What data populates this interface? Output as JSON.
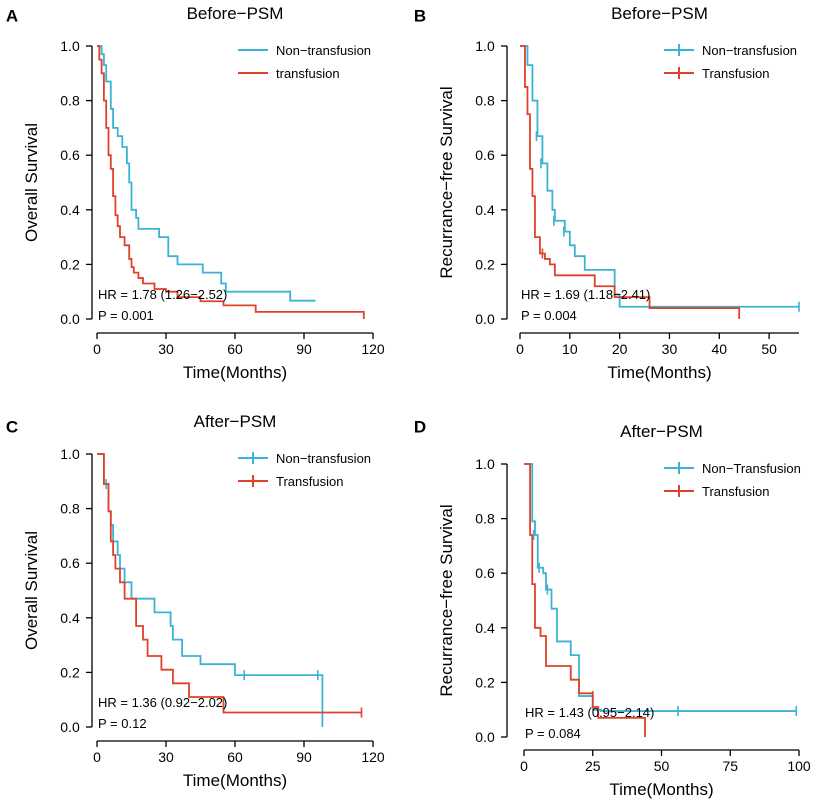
{
  "colors": {
    "non_transfusion": "#3ab3d4",
    "transfusion": "#e0412a",
    "axis": "#000000"
  },
  "chart_data": [
    {
      "type": "line",
      "panel": "A",
      "title": "Before−PSM",
      "xlabel": "Time(Months)",
      "ylabel": "Overall Survival",
      "xlim": [
        0,
        120
      ],
      "ylim": [
        0,
        1
      ],
      "xticks": [
        "0",
        "30",
        "60",
        "90",
        "120"
      ],
      "yticks": [
        "0.0",
        "0.2",
        "0.4",
        "0.6",
        "0.8",
        "1.0"
      ],
      "legend_position": "top-right",
      "annotation": {
        "hr": "HR = 1.78 (1.26−2.52)",
        "p": "P = 0.001"
      },
      "series": [
        {
          "name": "Non−transfusion",
          "color_key": "non_transfusion",
          "censor_marks": false,
          "steps": [
            [
              0,
              1.0
            ],
            [
              2,
              0.97
            ],
            [
              3,
              0.93
            ],
            [
              4,
              0.87
            ],
            [
              6,
              0.77
            ],
            [
              7,
              0.7
            ],
            [
              9,
              0.67
            ],
            [
              11,
              0.63
            ],
            [
              13,
              0.57
            ],
            [
              14,
              0.5
            ],
            [
              15,
              0.4
            ],
            [
              17,
              0.37
            ],
            [
              18,
              0.33
            ],
            [
              27,
              0.3
            ],
            [
              31,
              0.23
            ],
            [
              35,
              0.2
            ],
            [
              46,
              0.17
            ],
            [
              54,
              0.13
            ],
            [
              56,
              0.1
            ],
            [
              84,
              0.067
            ],
            [
              95,
              0.067
            ]
          ],
          "censors": []
        },
        {
          "name": "transfusion",
          "color_key": "transfusion",
          "censor_marks": false,
          "steps": [
            [
              0,
              1.0
            ],
            [
              1,
              0.95
            ],
            [
              2,
              0.9
            ],
            [
              3,
              0.8
            ],
            [
              4,
              0.7
            ],
            [
              5,
              0.6
            ],
            [
              6,
              0.55
            ],
            [
              7,
              0.45
            ],
            [
              8,
              0.38
            ],
            [
              9,
              0.34
            ],
            [
              10,
              0.3
            ],
            [
              12,
              0.27
            ],
            [
              14,
              0.22
            ],
            [
              15,
              0.19
            ],
            [
              16,
              0.17
            ],
            [
              18,
              0.15
            ],
            [
              20,
              0.13
            ],
            [
              25,
              0.11
            ],
            [
              30,
              0.1
            ],
            [
              35,
              0.08
            ],
            [
              40,
              0.08
            ],
            [
              45,
              0.065
            ],
            [
              55,
              0.05
            ],
            [
              69,
              0.026
            ],
            [
              116,
              0.026
            ],
            [
              116,
              0.0
            ]
          ],
          "censors": []
        }
      ]
    },
    {
      "type": "line",
      "panel": "B",
      "title": "Before−PSM",
      "xlabel": "Time(Months)",
      "ylabel": "Recurrance−free Survival",
      "xlim": [
        0,
        56
      ],
      "ylim": [
        0,
        1
      ],
      "xticks": [
        "0",
        "10",
        "20",
        "30",
        "40",
        "50"
      ],
      "yticks": [
        "0.0",
        "0.2",
        "0.4",
        "0.6",
        "0.8",
        "1.0"
      ],
      "legend_position": "top-right",
      "annotation": {
        "hr": "HR = 1.69 (1.18−2.41)",
        "p": "P = 0.004"
      },
      "series": [
        {
          "name": "Non−transfusion",
          "color_key": "non_transfusion",
          "censor_marks": true,
          "steps": [
            [
              0,
              1.0
            ],
            [
              1,
              1.0
            ],
            [
              1.5,
              0.93
            ],
            [
              2.5,
              0.8
            ],
            [
              3.5,
              0.67
            ],
            [
              4.5,
              0.57
            ],
            [
              5.5,
              0.47
            ],
            [
              6.5,
              0.4
            ],
            [
              7,
              0.36
            ],
            [
              9,
              0.32
            ],
            [
              10,
              0.27
            ],
            [
              11,
              0.23
            ],
            [
              13,
              0.18
            ],
            [
              19,
              0.09
            ],
            [
              20,
              0.045
            ],
            [
              56,
              0.045
            ]
          ],
          "censors": [
            [
              3.3,
              0.67
            ],
            [
              4.2,
              0.57
            ],
            [
              6.8,
              0.36
            ],
            [
              8.8,
              0.32
            ],
            [
              56,
              0.045
            ]
          ]
        },
        {
          "name": "Transfusion",
          "color_key": "transfusion",
          "censor_marks": true,
          "steps": [
            [
              0,
              1.0
            ],
            [
              1,
              0.85
            ],
            [
              1.5,
              0.75
            ],
            [
              2,
              0.55
            ],
            [
              2.5,
              0.45
            ],
            [
              3,
              0.3
            ],
            [
              4,
              0.24
            ],
            [
              5,
              0.22
            ],
            [
              6,
              0.2
            ],
            [
              7,
              0.16
            ],
            [
              15,
              0.12
            ],
            [
              19,
              0.08
            ],
            [
              26,
              0.04
            ],
            [
              44,
              0.04
            ],
            [
              44,
              0.0
            ]
          ],
          "censors": [
            [
              4.5,
              0.24
            ]
          ]
        }
      ]
    },
    {
      "type": "line",
      "panel": "C",
      "title": "After−PSM",
      "xlabel": "Time(Months)",
      "ylabel": "Overall Survival",
      "xlim": [
        0,
        120
      ],
      "ylim": [
        0,
        1
      ],
      "xticks": [
        "0",
        "30",
        "60",
        "90",
        "120"
      ],
      "yticks": [
        "0.0",
        "0.2",
        "0.4",
        "0.6",
        "0.8",
        "1.0"
      ],
      "legend_position": "top-right",
      "annotation": {
        "hr": "HR = 1.36 (0.92−2.02)",
        "p": "P = 0.12"
      },
      "series": [
        {
          "name": "Non−transfusion",
          "color_key": "non_transfusion",
          "censor_marks": true,
          "steps": [
            [
              0,
              1.0
            ],
            [
              3,
              0.89
            ],
            [
              5,
              0.79
            ],
            [
              6,
              0.74
            ],
            [
              7,
              0.68
            ],
            [
              9,
              0.63
            ],
            [
              10,
              0.58
            ],
            [
              12,
              0.53
            ],
            [
              15,
              0.47
            ],
            [
              25,
              0.42
            ],
            [
              32,
              0.37
            ],
            [
              33,
              0.32
            ],
            [
              37,
              0.26
            ],
            [
              45,
              0.23
            ],
            [
              55,
              0.23
            ],
            [
              60,
              0.19
            ],
            [
              98,
              0.19
            ],
            [
              98,
              0.0
            ]
          ],
          "censors": [
            [
              4,
              0.89
            ],
            [
              64,
              0.19
            ],
            [
              96,
              0.19
            ]
          ]
        },
        {
          "name": "Transfusion",
          "color_key": "transfusion",
          "censor_marks": true,
          "steps": [
            [
              0,
              1.0
            ],
            [
              3,
              0.89
            ],
            [
              5,
              0.79
            ],
            [
              6,
              0.68
            ],
            [
              7,
              0.63
            ],
            [
              8,
              0.58
            ],
            [
              10,
              0.53
            ],
            [
              12,
              0.47
            ],
            [
              17,
              0.37
            ],
            [
              20,
              0.32
            ],
            [
              22,
              0.26
            ],
            [
              28,
              0.21
            ],
            [
              33,
              0.16
            ],
            [
              40,
              0.11
            ],
            [
              55,
              0.053
            ],
            [
              115,
              0.053
            ]
          ],
          "censors": [
            [
              115,
              0.053
            ]
          ]
        }
      ]
    },
    {
      "type": "line",
      "panel": "D",
      "title": "After−PSM",
      "xlabel": "Time(Months)",
      "ylabel": "Recurrance−free Survival",
      "xlim": [
        0,
        100
      ],
      "ylim": [
        0,
        1
      ],
      "xticks": [
        "0",
        "25",
        "50",
        "75",
        "100"
      ],
      "yticks": [
        "0.0",
        "0.2",
        "0.4",
        "0.6",
        "0.8",
        "1.0"
      ],
      "legend_position": "top-right",
      "annotation": {
        "hr": "HR = 1.43 (0.95−2.14)",
        "p": "P = 0.084"
      },
      "series": [
        {
          "name": "Non−Transfusion",
          "color_key": "non_transfusion",
          "censor_marks": true,
          "steps": [
            [
              0,
              1.0
            ],
            [
              2,
              1.0
            ],
            [
              3,
              0.79
            ],
            [
              4,
              0.74
            ],
            [
              5,
              0.62
            ],
            [
              7,
              0.6
            ],
            [
              8,
              0.54
            ],
            [
              10,
              0.47
            ],
            [
              12,
              0.35
            ],
            [
              17,
              0.3
            ],
            [
              20,
              0.15
            ],
            [
              25,
              0.1
            ],
            [
              28,
              0.095
            ],
            [
              99,
              0.095
            ]
          ],
          "censors": [
            [
              3.5,
              0.74
            ],
            [
              5.5,
              0.62
            ],
            [
              8.5,
              0.54
            ],
            [
              56,
              0.095
            ],
            [
              99,
              0.095
            ]
          ]
        },
        {
          "name": "Transfusion",
          "color_key": "transfusion",
          "censor_marks": true,
          "steps": [
            [
              0,
              1.0
            ],
            [
              1.5,
              1.0
            ],
            [
              2.2,
              0.74
            ],
            [
              3,
              0.56
            ],
            [
              4,
              0.4
            ],
            [
              6,
              0.37
            ],
            [
              8,
              0.26
            ],
            [
              17,
              0.21
            ],
            [
              20,
              0.16
            ],
            [
              25,
              0.11
            ],
            [
              27,
              0.07
            ],
            [
              44,
              0.07
            ],
            [
              44,
              0.0
            ]
          ],
          "censors": [
            [
              25,
              0.15
            ]
          ]
        }
      ]
    }
  ]
}
